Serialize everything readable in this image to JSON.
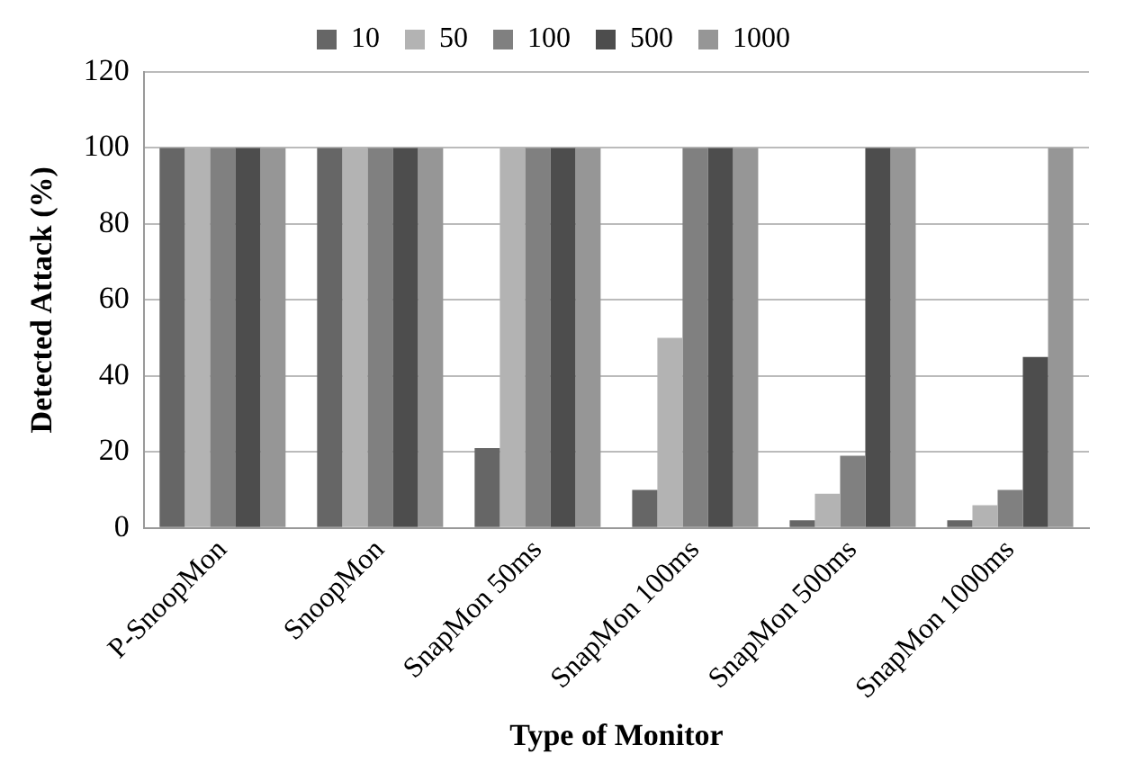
{
  "chart_data": {
    "type": "bar",
    "xlabel": "Type of Monitor",
    "ylabel": "Detected Attack (%)",
    "categories": [
      "P-SnoopMon",
      "SnoopMon",
      "SnapMon 50ms",
      "SnapMon 100ms",
      "SnapMon 500ms",
      "SnapMon 1000ms"
    ],
    "series": [
      {
        "name": "10",
        "color": "#666666",
        "values": [
          100,
          100,
          21,
          10,
          2,
          2
        ]
      },
      {
        "name": "50",
        "color": "#b3b3b3",
        "values": [
          100,
          100,
          100,
          50,
          9,
          6
        ]
      },
      {
        "name": "100",
        "color": "#808080",
        "values": [
          100,
          100,
          100,
          100,
          19,
          10
        ]
      },
      {
        "name": "500",
        "color": "#4d4d4d",
        "values": [
          100,
          100,
          100,
          100,
          100,
          45
        ]
      },
      {
        "name": "1000",
        "color": "#969696",
        "values": [
          100,
          100,
          100,
          100,
          100,
          100
        ]
      }
    ],
    "ylim": [
      0,
      120
    ],
    "yticks": [
      0,
      20,
      40,
      60,
      80,
      100,
      120
    ],
    "grid": "y",
    "legend": "top"
  }
}
